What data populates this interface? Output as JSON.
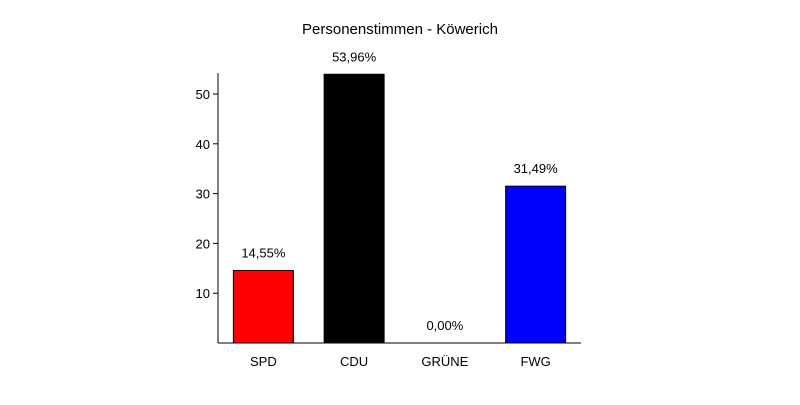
{
  "chart_data": {
    "type": "bar",
    "title": "Personenstimmen - Köwerich",
    "xlabel": "",
    "ylabel": "",
    "categories": [
      "SPD",
      "CDU",
      "GRÜNE",
      "FWG"
    ],
    "values": [
      14.55,
      53.96,
      0.0,
      31.49
    ],
    "data_labels": [
      "14,55%",
      "53,96%",
      "0,00%",
      "31,49%"
    ],
    "colors": [
      "#ff0000",
      "#000000",
      "#00aa00",
      "#0000ff"
    ],
    "ylim": [
      0,
      54
    ],
    "yticks": [
      10,
      20,
      30,
      40,
      50
    ],
    "ytick_labels": [
      "10",
      "20",
      "30",
      "40",
      "50"
    ],
    "grid": false,
    "legend": "none"
  }
}
